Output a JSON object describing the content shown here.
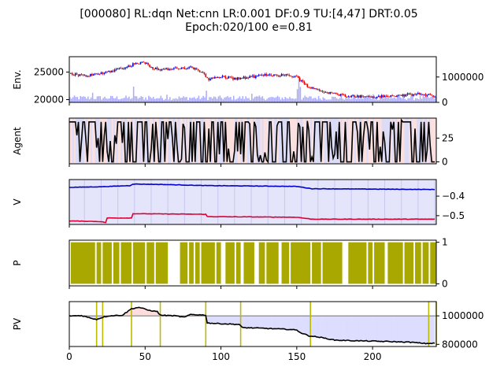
{
  "title_line1": "[000080] RL:dqn Net:cnn LR:0.001 DF:0.9 TU:[4,47] DRT:0.05",
  "title_line2": "Epoch:020/100 e=0.81",
  "x_range": [
    0,
    242
  ],
  "x_ticks": [
    "0",
    "50",
    "100",
    "150",
    "200"
  ],
  "x_tick_values": [
    0,
    50,
    100,
    150,
    200
  ],
  "colors": {
    "buy": "#0000cc",
    "sell": "#dd0000",
    "volume": "#aaaaff",
    "agent_bg_buy": "#dcdcf7",
    "agent_bg_sell": "#fbe0e0",
    "v_top": "#0000cc",
    "v_bot": "#dd0033",
    "pos_fill": "#a8a800",
    "pv_gain": "#ffdddd",
    "pv_loss": "#ddddff",
    "trade_line": "#bbbb00"
  },
  "chart_data": [
    {
      "name": "env",
      "type": "line",
      "ylabel": "Env.",
      "y_ticks": [
        "20000",
        "25000"
      ],
      "y_tick_values": [
        20000,
        25000
      ],
      "ylim": [
        19500,
        27800
      ],
      "y2_ticks": [
        "0",
        "1000000"
      ],
      "y2_tick_values": [
        0,
        1000000
      ],
      "y2lim": [
        0,
        1800000
      ],
      "price_anchors": [
        [
          0,
          24800
        ],
        [
          10,
          24300
        ],
        [
          20,
          24700
        ],
        [
          30,
          25400
        ],
        [
          40,
          26100
        ],
        [
          43,
          26600
        ],
        [
          50,
          26700
        ],
        [
          55,
          25800
        ],
        [
          60,
          25500
        ],
        [
          70,
          25600
        ],
        [
          80,
          25800
        ],
        [
          88,
          25000
        ],
        [
          90,
          24300
        ],
        [
          92,
          23700
        ],
        [
          100,
          24200
        ],
        [
          110,
          23800
        ],
        [
          120,
          24100
        ],
        [
          130,
          24500
        ],
        [
          140,
          24500
        ],
        [
          150,
          24200
        ],
        [
          155,
          22800
        ],
        [
          160,
          22100
        ],
        [
          170,
          21300
        ],
        [
          180,
          20800
        ],
        [
          190,
          20600
        ],
        [
          200,
          20500
        ],
        [
          210,
          20600
        ],
        [
          220,
          20800
        ],
        [
          230,
          21000
        ],
        [
          242,
          20700
        ]
      ],
      "volume_spikes": [
        [
          15,
          380000
        ],
        [
          42,
          620000
        ],
        [
          52,
          260000
        ],
        [
          64,
          300000
        ],
        [
          90,
          460000
        ],
        [
          120,
          340000
        ],
        [
          150,
          520000
        ],
        [
          151,
          1020000
        ],
        [
          152,
          610000
        ],
        [
          200,
          320000
        ]
      ]
    },
    {
      "name": "agent",
      "type": "line",
      "ylabel": "Agent",
      "y_ticks": [
        "0",
        "25"
      ],
      "y_tick_values": [
        0,
        25
      ],
      "ylim": [
        -2,
        46
      ]
    },
    {
      "name": "v",
      "type": "line",
      "ylabel": "V",
      "y_ticks": [
        "−0.4",
        "−0.5"
      ],
      "y_tick_values": [
        -0.4,
        -0.5
      ],
      "ylim": [
        -0.545,
        -0.315
      ],
      "series": [
        {
          "anchors": [
            [
              0,
              -0.355
            ],
            [
              20,
              -0.352
            ],
            [
              40,
              -0.346
            ],
            [
              42,
              -0.338
            ],
            [
              60,
              -0.34
            ],
            [
              90,
              -0.346
            ],
            [
              150,
              -0.35
            ],
            [
              160,
              -0.362
            ],
            [
              242,
              -0.366
            ]
          ]
        },
        {
          "anchors": [
            [
              0,
              -0.527
            ],
            [
              20,
              -0.53
            ],
            [
              24,
              -0.535
            ],
            [
              25,
              -0.512
            ],
            [
              41,
              -0.512
            ],
            [
              42,
              -0.49
            ],
            [
              60,
              -0.491
            ],
            [
              90,
              -0.493
            ],
            [
              91,
              -0.505
            ],
            [
              150,
              -0.508
            ],
            [
              160,
              -0.518
            ],
            [
              242,
              -0.518
            ]
          ]
        }
      ]
    },
    {
      "name": "p",
      "type": "bar",
      "ylabel": "P",
      "y_ticks": [
        "0",
        "1"
      ],
      "y_tick_values": [
        0,
        1
      ],
      "ylim": [
        -0.05,
        1.05
      ],
      "gaps": [
        [
          0,
          1
        ],
        [
          17,
          18
        ],
        [
          21,
          22
        ],
        [
          28,
          29
        ],
        [
          33,
          34
        ],
        [
          41,
          42
        ],
        [
          50,
          51
        ],
        [
          56,
          57
        ],
        [
          65,
          73
        ],
        [
          78,
          79
        ],
        [
          82,
          83
        ],
        [
          86,
          87
        ],
        [
          96,
          97
        ],
        [
          100,
          103
        ],
        [
          109,
          110
        ],
        [
          113,
          115
        ],
        [
          122,
          125
        ],
        [
          129,
          130
        ],
        [
          138,
          140
        ],
        [
          145,
          146
        ],
        [
          159,
          160
        ],
        [
          166,
          167
        ],
        [
          180,
          184
        ],
        [
          196,
          197
        ],
        [
          200,
          201
        ],
        [
          208,
          210
        ],
        [
          220,
          221
        ],
        [
          227,
          228
        ],
        [
          232,
          233
        ],
        [
          237,
          238
        ]
      ]
    },
    {
      "name": "pv",
      "type": "line",
      "ylabel": "PV",
      "y_ticks": [
        "1000000",
        "800000"
      ],
      "y_tick_values": [
        1000000,
        800000
      ],
      "ylim": [
        785000,
        1100000
      ],
      "baseline": 1000000,
      "anchors": [
        [
          0,
          1000000
        ],
        [
          8,
          1002000
        ],
        [
          14,
          985000
        ],
        [
          18,
          975000
        ],
        [
          22,
          990000
        ],
        [
          26,
          1000000
        ],
        [
          35,
          1005000
        ],
        [
          41,
          1050000
        ],
        [
          46,
          1060000
        ],
        [
          52,
          1040000
        ],
        [
          58,
          1030000
        ],
        [
          60,
          1005000
        ],
        [
          70,
          1000000
        ],
        [
          76,
          990000
        ],
        [
          80,
          1010000
        ],
        [
          90,
          1005000
        ],
        [
          91,
          950000
        ],
        [
          100,
          945000
        ],
        [
          112,
          940000
        ],
        [
          114,
          918000
        ],
        [
          130,
          912000
        ],
        [
          145,
          905000
        ],
        [
          150,
          900000
        ],
        [
          153,
          880000
        ],
        [
          158,
          860000
        ],
        [
          165,
          850000
        ],
        [
          175,
          830000
        ],
        [
          190,
          825000
        ],
        [
          210,
          820000
        ],
        [
          225,
          815000
        ],
        [
          235,
          806000
        ],
        [
          242,
          808000
        ]
      ],
      "trade_lines": [
        18,
        22,
        41,
        60,
        90,
        113,
        159,
        237,
        242
      ]
    }
  ]
}
